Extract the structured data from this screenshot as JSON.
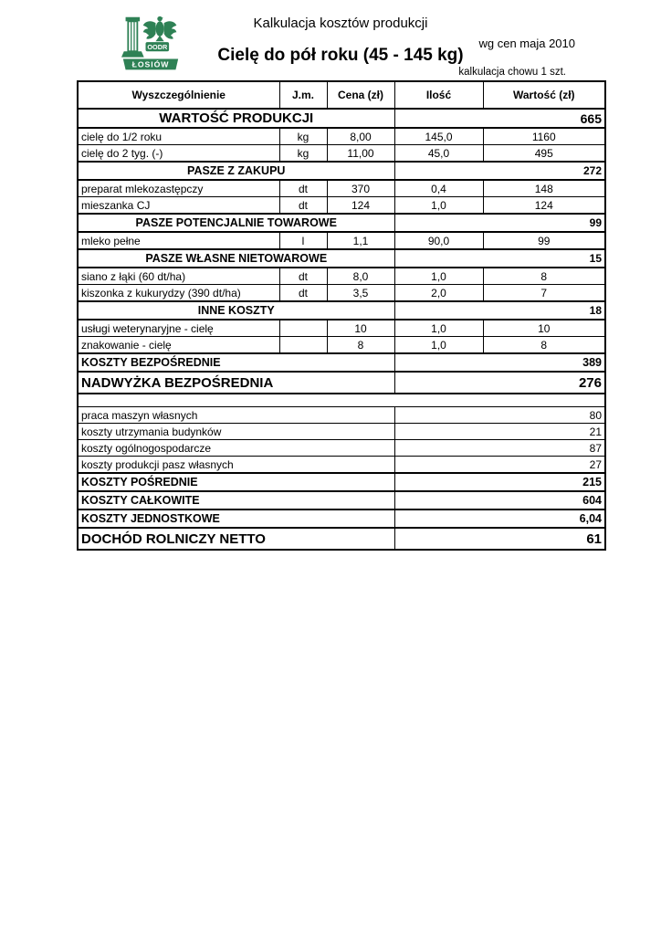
{
  "header": {
    "title": "Kalkulacja kosztów produkcji",
    "subtitle": "Cielę do pół roku (45 - 145 kg)",
    "price_note": "wg cen maja 2010",
    "unit_note": "kalkulacja chowu 1 szt.",
    "logo": {
      "org": "OODR",
      "place": "ŁOSIÓW",
      "color": "#2e8155"
    }
  },
  "table": {
    "columns": [
      "Wyszczególnienie",
      "J.m.",
      "Cena (zł)",
      "Ilość",
      "Wartość (zł)"
    ],
    "rows": [
      {
        "type": "section",
        "size": "lg",
        "label": "WARTOŚĆ PRODUKCJI",
        "total": "665"
      },
      {
        "type": "item",
        "label": "cielę do 1/2 roku",
        "unit": "kg",
        "price": "8,00",
        "qty": "145,0",
        "value": "1160"
      },
      {
        "type": "item",
        "label": "cielę do 2 tyg. (-)",
        "unit": "kg",
        "price": "11,00",
        "qty": "45,0",
        "value": "495"
      },
      {
        "type": "section",
        "label": "PASZE Z ZAKUPU",
        "total": "272"
      },
      {
        "type": "item",
        "label": "preparat mlekozastępczy",
        "unit": "dt",
        "price": "370",
        "qty": "0,4",
        "value": "148"
      },
      {
        "type": "item",
        "label": "mieszanka CJ",
        "unit": "dt",
        "price": "124",
        "qty": "1,0",
        "value": "124"
      },
      {
        "type": "section",
        "label": "PASZE POTENCJALNIE TOWAROWE",
        "total": "99"
      },
      {
        "type": "item",
        "label": "mleko pełne",
        "unit": "l",
        "price": "1,1",
        "qty": "90,0",
        "value": "99"
      },
      {
        "type": "section",
        "label": "PASZE WŁASNE NIETOWAROWE",
        "total": "15"
      },
      {
        "type": "item",
        "label": "siano z łąki (60 dt/ha)",
        "unit": "dt",
        "price": "8,0",
        "qty": "1,0",
        "value": "8"
      },
      {
        "type": "item",
        "label": "kiszonka z kukurydzy (390 dt/ha)",
        "unit": "dt",
        "price": "3,5",
        "qty": "2,0",
        "value": "7"
      },
      {
        "type": "section",
        "label": "INNE KOSZTY",
        "total": "18"
      },
      {
        "type": "item",
        "label": "usługi weterynaryjne - cielę",
        "unit": "",
        "price": "10",
        "qty": "1,0",
        "value": "10"
      },
      {
        "type": "item",
        "label": "znakowanie - cielę",
        "unit": "",
        "price": "8",
        "qty": "1,0",
        "value": "8"
      },
      {
        "type": "summary",
        "label": "KOSZTY BEZPOŚREDNIE",
        "total": "389"
      },
      {
        "type": "big",
        "label": "NADWYŻKA BEZPOŚREDNIA",
        "total": "276"
      },
      {
        "type": "gap",
        "label": "",
        "total": ""
      },
      {
        "type": "plain",
        "label": "praca maszyn własnych",
        "total": "80"
      },
      {
        "type": "plain",
        "label": "koszty utrzymania budynków",
        "total": "21"
      },
      {
        "type": "plain",
        "label": "koszty ogólnogospodarcze",
        "total": "87"
      },
      {
        "type": "plain",
        "label": "koszty produkcji pasz własnych",
        "total": "27"
      },
      {
        "type": "summary",
        "label": "KOSZTY POŚREDNIE",
        "total": "215"
      },
      {
        "type": "summary",
        "label": "KOSZTY CAŁKOWITE",
        "total": "604"
      },
      {
        "type": "summary",
        "label": "KOSZTY JEDNOSTKOWE",
        "total": "6,04"
      },
      {
        "type": "big",
        "label": "DOCHÓD ROLNICZY NETTO",
        "total": "61"
      }
    ]
  }
}
